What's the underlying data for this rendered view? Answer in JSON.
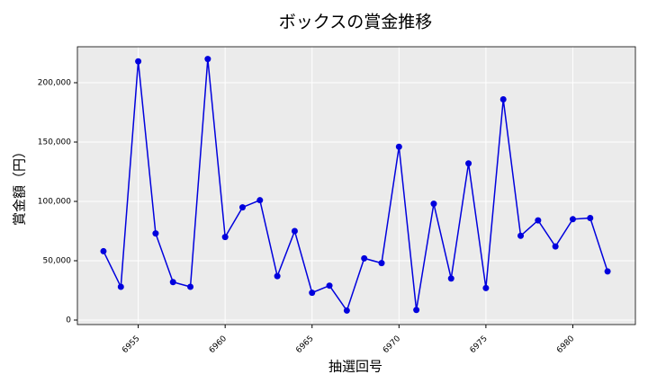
{
  "chart_data": {
    "type": "line",
    "title": "ボックスの賞金推移",
    "x_label": "抽選回号",
    "y_label": "賞金額（円）",
    "x": [
      6953,
      6954,
      6955,
      6956,
      6957,
      6958,
      6959,
      6960,
      6961,
      6962,
      6963,
      6964,
      6965,
      6966,
      6967,
      6968,
      6969,
      6970,
      6971,
      6972,
      6973,
      6974,
      6975,
      6976,
      6977,
      6978,
      6979,
      6980,
      6981,
      6982
    ],
    "series": [
      {
        "name": "ボックス",
        "color": "#0000dd",
        "values": [
          58000,
          28000,
          218000,
          73000,
          32000,
          28000,
          220000,
          70000,
          95000,
          101000,
          37000,
          75000,
          23000,
          29000,
          8000,
          52000,
          48000,
          146000,
          8500,
          98000,
          35000,
          132000,
          27000,
          186000,
          71000,
          84000,
          62000,
          85000,
          86000,
          41000
        ]
      }
    ],
    "xlim": [
      6951.5,
      6983.6
    ],
    "xticks": [
      6955,
      6960,
      6965,
      6970,
      6975,
      6980
    ],
    "ylim": [
      -3800,
      230300
    ],
    "yticks": [
      0,
      {
        "value": 50000,
        "label": "50,000"
      },
      {
        "value": 100000,
        "label": "100,000"
      },
      {
        "value": 150000,
        "label": "150,000"
      },
      {
        "value": 200000,
        "label": "200,000"
      }
    ],
    "grid": true
  }
}
